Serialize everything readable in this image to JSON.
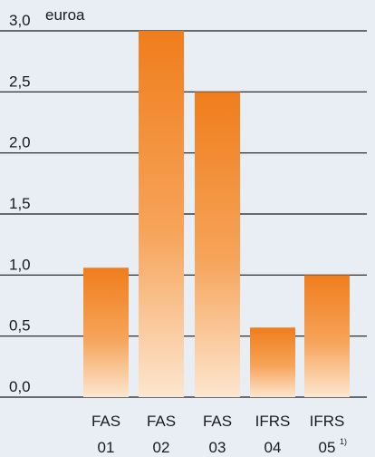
{
  "chart_data": {
    "type": "bar",
    "unit": "euroa",
    "categories": [
      {
        "line1": "FAS",
        "line2": "01",
        "note": ""
      },
      {
        "line1": "FAS",
        "line2": "02",
        "note": ""
      },
      {
        "line1": "FAS",
        "line2": "03",
        "note": ""
      },
      {
        "line1": "IFRS",
        "line2": "04",
        "note": ""
      },
      {
        "line1": "IFRS",
        "line2": "05",
        "note": "1)"
      }
    ],
    "values": [
      1.06,
      3.0,
      2.5,
      0.57,
      1.0
    ],
    "yticks": [
      "0,0",
      "0,5",
      "1,0",
      "1,5",
      "2,0",
      "2,5",
      "3,0"
    ],
    "ylim": [
      0,
      3.0
    ],
    "grid": true,
    "colors": {
      "bar_top": "#f07d1c",
      "bar_mid": "#f6a45a",
      "bar_bottom": "#fde6cf",
      "background": "#e9eef4",
      "grid": "#1a1a1a"
    }
  }
}
